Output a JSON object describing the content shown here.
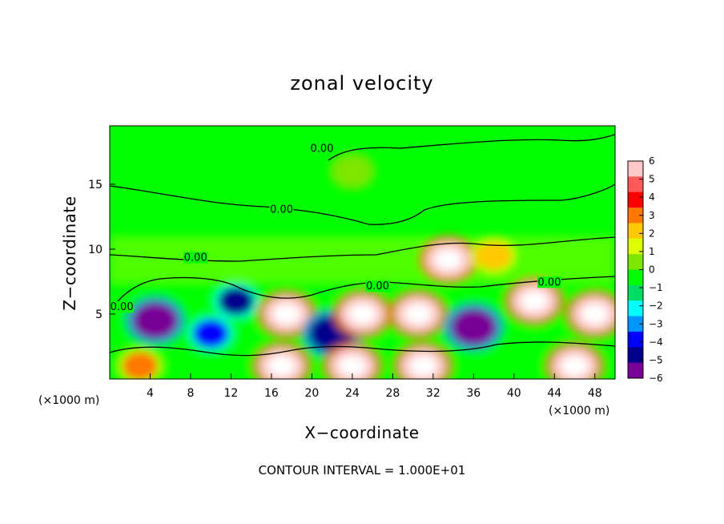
{
  "chart_data": {
    "type": "heatmap",
    "title": "zonal velocity",
    "xlabel": "X−coordinate",
    "ylabel": "Z−coordinate",
    "x_unit": "(×1000 m)",
    "x_unit_right": "(×1000 m)",
    "xlim": [
      0,
      50
    ],
    "ylim": [
      0,
      19.5
    ],
    "x_ticks": [
      4,
      8,
      12,
      16,
      20,
      24,
      28,
      32,
      36,
      40,
      44,
      48
    ],
    "x_tick_labels": [
      "4",
      "8",
      "12",
      "16",
      "20",
      "24",
      "28",
      "32",
      "36",
      "40",
      "44",
      "48"
    ],
    "y_ticks": [
      5,
      10,
      15
    ],
    "y_tick_labels": [
      "5",
      "10",
      "15"
    ],
    "colorbar": {
      "min": -6,
      "max": 6,
      "ticks": [
        6,
        5,
        4,
        3,
        2,
        1,
        0,
        -1,
        -2,
        -3,
        -4,
        -5,
        -6
      ],
      "tick_labels": [
        "6",
        "5",
        "4",
        "3",
        "2",
        "1",
        "0",
        "−1",
        "−2",
        "−3",
        "−4",
        "−5",
        "−6"
      ],
      "colors": [
        "#ffc8c8",
        "#ff5a5a",
        "#ff0000",
        "#ff7800",
        "#ffc800",
        "#dcff00",
        "#7ee600",
        "#00ff00",
        "#00dc64",
        "#00ffff",
        "#0096ff",
        "#0000ff",
        "#00008c",
        "#780096"
      ]
    },
    "contour_labels": [
      {
        "text": "0.00",
        "x": 21,
        "y": 17.5
      },
      {
        "text": "0.00",
        "x": 17,
        "y": 12.8
      },
      {
        "text": "0.00",
        "x": 8.5,
        "y": 9.1
      },
      {
        "text": "0.00",
        "x": 1.2,
        "y": 5.3
      },
      {
        "text": "0.00",
        "x": 26.5,
        "y": 6.9
      },
      {
        "text": "0.00",
        "x": 43.5,
        "y": 7.2
      }
    ],
    "features": [
      {
        "x": 4.5,
        "z": 4.5,
        "u": -5.5
      },
      {
        "x": 10,
        "z": 3.5,
        "u": -4
      },
      {
        "x": 12.5,
        "z": 6,
        "u": -4.5
      },
      {
        "x": 17.5,
        "z": 5,
        "u": 6
      },
      {
        "x": 22,
        "z": 3.5,
        "u": -5
      },
      {
        "x": 25,
        "z": 5,
        "u": 6
      },
      {
        "x": 30.5,
        "z": 5,
        "u": 6
      },
      {
        "x": 33.5,
        "z": 9.2,
        "u": 6
      },
      {
        "x": 36,
        "z": 4,
        "u": -5.5
      },
      {
        "x": 42,
        "z": 6,
        "u": 6
      },
      {
        "x": 48,
        "z": 5,
        "u": 6
      },
      {
        "x": 17,
        "z": 1,
        "u": 6
      },
      {
        "x": 24,
        "z": 1,
        "u": 6
      },
      {
        "x": 31,
        "z": 1,
        "u": 6
      },
      {
        "x": 46,
        "z": 1,
        "u": 6
      },
      {
        "x": 3,
        "z": 1,
        "u": 3
      },
      {
        "x": 38,
        "z": 9.5,
        "u": 2.5
      },
      {
        "x": 24,
        "z": 16,
        "u": 0.5
      }
    ]
  },
  "footer": {
    "contour_note": "CONTOUR INTERVAL = 1.000E+01"
  }
}
